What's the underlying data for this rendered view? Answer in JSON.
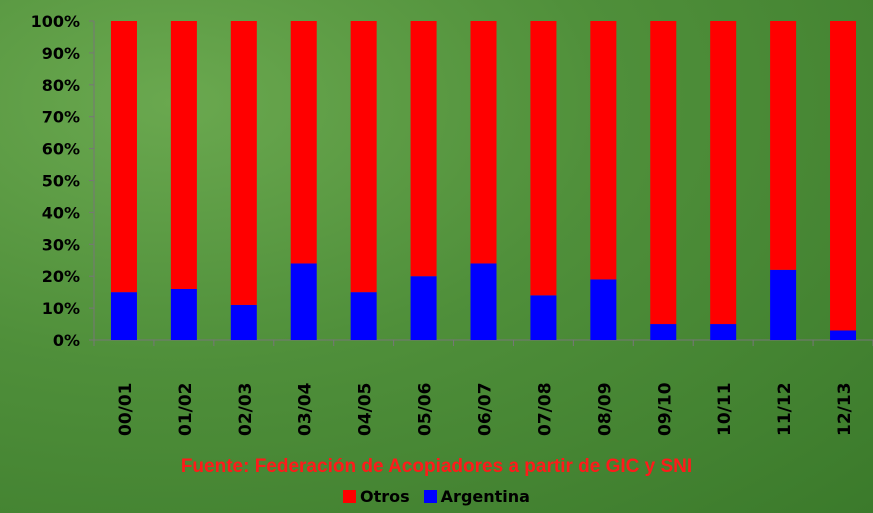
{
  "chart_data": {
    "type": "bar",
    "stacked": true,
    "percent_scale": true,
    "categories": [
      "00/01",
      "01/02",
      "02/03",
      "03/04",
      "04/05",
      "05/06",
      "06/07",
      "07/08",
      "08/09",
      "09/10",
      "10/11",
      "11/12",
      "12/13"
    ],
    "series": [
      {
        "name": "Argentina",
        "color": "#0000ff",
        "values": [
          15,
          16,
          11,
          24,
          15,
          20,
          24,
          14,
          19,
          5,
          5,
          22,
          3
        ]
      },
      {
        "name": "Otros",
        "color": "#ff0000",
        "values": [
          85,
          84,
          89,
          76,
          85,
          80,
          76,
          86,
          81,
          95,
          95,
          78,
          97
        ]
      }
    ],
    "y_ticks": [
      "0%",
      "10%",
      "20%",
      "30%",
      "40%",
      "50%",
      "60%",
      "70%",
      "80%",
      "90%",
      "100%"
    ],
    "ylim": [
      0,
      100
    ],
    "source": "Fuente:  Federación de Acopiadores a partir de GIC y SNI",
    "legend": {
      "placement": "bottom",
      "entries": [
        "Otros",
        "Argentina"
      ]
    }
  }
}
